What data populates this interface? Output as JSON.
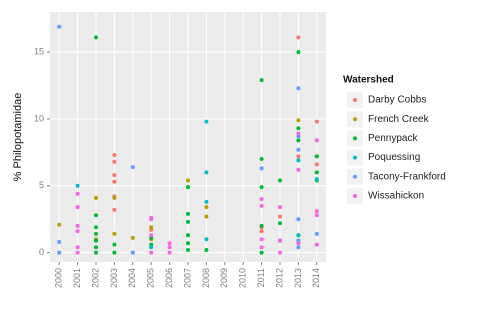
{
  "chart_data": {
    "type": "scatter",
    "y_label": "% Philopotamidae",
    "legend_title": "Watershed",
    "legend_position": "right",
    "grid": true,
    "xlim": [
      1999.5,
      2014.5
    ],
    "xticks": [
      2000,
      2001,
      2002,
      2003,
      2004,
      2005,
      2006,
      2007,
      2008,
      2009,
      2010,
      2011,
      2012,
      2013,
      2014
    ],
    "ylim": [
      -0.7,
      18
    ],
    "yticks": [
      0,
      5,
      10,
      15
    ],
    "series": [
      {
        "name": "Darby Cobbs",
        "color": "#F8766D",
        "x": [
          2003,
          2003,
          2003,
          2003,
          2003,
          2003,
          2005,
          2011,
          2011,
          2012,
          2013,
          2013,
          2014,
          2014
        ],
        "values": [
          7.3,
          6.8,
          5.8,
          5.3,
          4.2,
          3.2,
          1.7,
          1.9,
          1.6,
          2.7,
          16.1,
          7.2,
          9.8,
          6.6
        ]
      },
      {
        "name": "French Creek",
        "color": "#B79F00",
        "x": [
          2000,
          2002,
          2002,
          2003,
          2003,
          2004,
          2005,
          2005,
          2007,
          2007,
          2008,
          2008,
          2013,
          2014
        ],
        "values": [
          2.1,
          4.1,
          1.0,
          4.1,
          1.4,
          1.1,
          1.9,
          1.0,
          5.4,
          4.9,
          3.4,
          2.7,
          9.9,
          7.2
        ]
      },
      {
        "name": "Pennypack",
        "color": "#00BA38",
        "x": [
          2002,
          2002,
          2002,
          2002,
          2002,
          2002,
          2002,
          2003,
          2003,
          2005,
          2005,
          2007,
          2007,
          2007,
          2007,
          2007,
          2007,
          2008,
          2011,
          2011,
          2011,
          2011,
          2011,
          2012,
          2012,
          2013,
          2013,
          2013,
          2013,
          2013,
          2014,
          2014,
          2014
        ],
        "values": [
          16.1,
          2.8,
          1.9,
          1.4,
          0.9,
          0.4,
          0,
          0.6,
          0,
          1.1,
          0.6,
          4.9,
          2.9,
          2.3,
          1.3,
          0.7,
          0.2,
          0.2,
          12.9,
          7.0,
          4.9,
          2.0,
          0,
          5.4,
          2.2,
          15.0,
          9.3,
          8.4,
          1.3,
          0.9,
          7.2,
          6.0,
          5.4
        ]
      },
      {
        "name": "Poquessing",
        "color": "#00BFC4",
        "x": [
          2001,
          2005,
          2008,
          2008,
          2008,
          2008,
          2013,
          2013,
          2014
        ],
        "values": [
          5.0,
          0.4,
          9.8,
          6.0,
          3.8,
          1.0,
          6.9,
          1.3,
          5.5
        ]
      },
      {
        "name": "Tacony-Frankford",
        "color": "#619CFF",
        "x": [
          2000,
          2000,
          2000,
          2004,
          2004,
          2011,
          2012,
          2013,
          2013,
          2013,
          2013,
          2013,
          2013,
          2014
        ],
        "values": [
          16.9,
          0.8,
          0,
          6.4,
          0,
          6.3,
          0.9,
          12.3,
          8.7,
          7.7,
          2.5,
          0.9,
          0.4,
          1.4
        ]
      },
      {
        "name": "Wissahickon",
        "color": "#F564E3",
        "x": [
          2001,
          2001,
          2001,
          2001,
          2001,
          2001,
          2005,
          2005,
          2005,
          2005,
          2006,
          2006,
          2006,
          2011,
          2011,
          2011,
          2011,
          2012,
          2012,
          2012,
          2013,
          2013,
          2013,
          2014,
          2014,
          2014,
          2014
        ],
        "values": [
          4.4,
          3.4,
          2.0,
          1.6,
          0.4,
          0,
          2.6,
          2.5,
          1.3,
          0,
          0.7,
          0.4,
          0,
          4.0,
          3.5,
          1.0,
          0.4,
          3.4,
          0.9,
          0,
          8.9,
          6.2,
          0.7,
          8.4,
          3.1,
          2.8,
          0.6
        ]
      }
    ]
  }
}
